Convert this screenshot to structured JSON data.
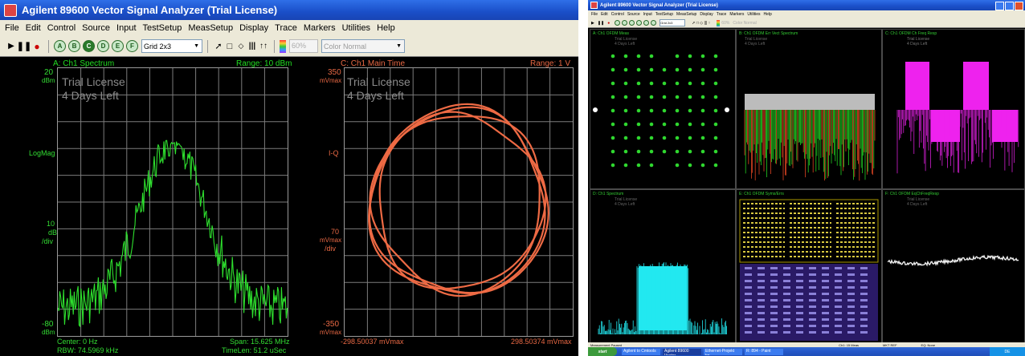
{
  "left_window": {
    "title": "Agilent 89600 Vector Signal Analyzer (Trial License)",
    "menu": [
      "File",
      "Edit",
      "Control",
      "Source",
      "Input",
      "TestSetup",
      "MeasSetup",
      "Display",
      "Trace",
      "Markers",
      "Utilities",
      "Help"
    ],
    "toolbar": {
      "circle_buttons": [
        "A",
        "B",
        "C",
        "D",
        "E",
        "F"
      ],
      "layout_select": "Grid 2x3",
      "percent": "60%",
      "color_select": "Color Normal"
    },
    "trace_a": {
      "header": "A: Ch1 Spectrum",
      "range": "Range: 10 dBm",
      "y_top": "20",
      "y_top_unit": "dBm",
      "y_format": "LogMag",
      "y_scale_value": "10",
      "y_scale_unit": "dB",
      "y_scale_per": "/div",
      "y_bottom": "-80",
      "y_bottom_unit": "dBm",
      "watermark_1": "Trial License",
      "watermark_2": "4 Days Left",
      "footer_left_1": "Center: 0 Hz",
      "footer_left_2": "RBW: 74.5969 kHz",
      "footer_right_1": "Span: 15.625 MHz",
      "footer_right_2": "TimeLen: 51.2 uSec"
    },
    "trace_c": {
      "header": "C: Ch1 Main Time",
      "range": "Range: 1 V",
      "y_top": "350",
      "y_top_unit": "mVmax",
      "y_format": "I-Q",
      "y_scale_value": "70",
      "y_scale_unit": "mVmax",
      "y_scale_per": "/div",
      "y_bottom": "-350",
      "y_bottom_unit": "mVmax",
      "watermark_1": "Trial License",
      "watermark_2": "4 Days Left",
      "footer_left": "-298.50037 mVmax",
      "footer_right": "298.50374 mVmax"
    }
  },
  "right_window": {
    "title": "Agilent 89600 Vector Signal Analyzer (Trial License)",
    "menu": [
      "File",
      "Edit",
      "Control",
      "Source",
      "Input",
      "TestSetup",
      "MeasSetup",
      "Display",
      "Trace",
      "Markers",
      "Utilities",
      "Help"
    ],
    "layout_select": "Grid 2x3",
    "percent": "60%",
    "color_select": "Color Normal",
    "pane_headers": {
      "a": "A: Ch1 OFDM Meas",
      "b": "B: Ch1 OFDM Err Vect Spectrum",
      "c": "C: Ch1 OFDM Ch Freq Resp",
      "d": "D: Ch1 Spectrum",
      "e": "E: Ch1 OFDM Syms/Errs",
      "f": "F: Ch1 OFDM EqChFreqResp"
    },
    "watermark_1": "Trial License",
    "watermark_2": "4 Days Left",
    "taskbar": {
      "start": "start",
      "items": [
        "Agilent to Cmtools",
        "Agilent 89600 Vector...",
        "Ethernet-Projekt bp...",
        "R: 894 - Paint"
      ],
      "status": "DE",
      "clock": ""
    },
    "status_bar": [
      "Measurement Paused",
      "Ch1: 15 Meas",
      "MKT REF",
      "EQ: None"
    ]
  }
}
